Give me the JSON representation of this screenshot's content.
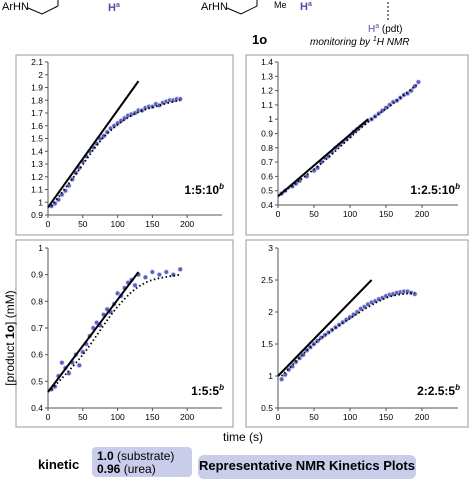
{
  "scheme": {
    "left_group": "ArHN",
    "h_label_left": "H",
    "h_sup_left": "a",
    "right_group": "ArHN",
    "me_label": "Me",
    "h_label_right": "H",
    "h_sup_right": "a",
    "compound": "1o",
    "pdt_h": "H",
    "pdt_sup": "a",
    "pdt_text": " (pdt)",
    "monitoring_prefix": "monitoring by ",
    "monitoring_sup": "1",
    "monitoring_suffix": "H NMR"
  },
  "axes": {
    "x_title": "time (s)",
    "y_title_prefix": "[product ",
    "y_title_bold": "1o",
    "y_title_suffix": "] (mM)"
  },
  "footer": {
    "kinetic_label": "kinetic",
    "order_1_value": "1.0",
    "order_1_text": " (substrate)",
    "order_2_value": "0.96",
    "order_2_text": " (urea)",
    "banner": "Representative NMR Kinetics Plots"
  },
  "chart_data": [
    {
      "type": "scatter",
      "ratio": "1:5:10",
      "ratio_sup": "b",
      "xlim": [
        0,
        250
      ],
      "ylim": [
        0.9,
        2.1
      ],
      "yticks": [
        "0.9",
        "1",
        "1.1",
        "1.2",
        "1.3",
        "1.4",
        "1.5",
        "1.6",
        "1.7",
        "1.8",
        "1.9",
        "2",
        "2.1"
      ],
      "xticks": [
        "0",
        "50",
        "100",
        "150",
        "200"
      ],
      "points": [
        [
          5,
          0.97
        ],
        [
          10,
          0.99
        ],
        [
          15,
          1.02
        ],
        [
          20,
          1.06
        ],
        [
          25,
          1.09
        ],
        [
          30,
          1.13
        ],
        [
          35,
          1.18
        ],
        [
          40,
          1.23
        ],
        [
          45,
          1.27
        ],
        [
          50,
          1.32
        ],
        [
          55,
          1.36
        ],
        [
          60,
          1.4
        ],
        [
          65,
          1.43
        ],
        [
          70,
          1.46
        ],
        [
          75,
          1.5
        ],
        [
          80,
          1.52
        ],
        [
          85,
          1.55
        ],
        [
          90,
          1.58
        ],
        [
          95,
          1.6
        ],
        [
          100,
          1.62
        ],
        [
          105,
          1.64
        ],
        [
          110,
          1.66
        ],
        [
          115,
          1.68
        ],
        [
          120,
          1.69
        ],
        [
          125,
          1.7
        ],
        [
          130,
          1.72
        ],
        [
          135,
          1.72
        ],
        [
          140,
          1.74
        ],
        [
          145,
          1.75
        ],
        [
          150,
          1.75
        ],
        [
          155,
          1.77
        ],
        [
          160,
          1.76
        ],
        [
          165,
          1.78
        ],
        [
          170,
          1.79
        ],
        [
          175,
          1.8
        ],
        [
          180,
          1.8
        ],
        [
          185,
          1.81
        ],
        [
          190,
          1.81
        ]
      ],
      "fit_line": [
        [
          0,
          0.96
        ],
        [
          130,
          1.95
        ]
      ],
      "trend": [
        [
          5,
          0.97
        ],
        [
          40,
          1.22
        ],
        [
          80,
          1.51
        ],
        [
          120,
          1.68
        ],
        [
          160,
          1.76
        ],
        [
          190,
          1.8
        ]
      ]
    },
    {
      "type": "scatter",
      "ratio": "1:2.5:10",
      "ratio_sup": "b",
      "xlim": [
        0,
        250
      ],
      "ylim": [
        0.4,
        1.4
      ],
      "yticks": [
        "0.4",
        "0.5",
        "0.6",
        "0.7",
        "0.8",
        "0.9",
        "1",
        "1.1",
        "1.2",
        "1.3",
        "1.4"
      ],
      "xticks": [
        "0",
        "50",
        "100",
        "150",
        "200"
      ],
      "points": [
        [
          5,
          0.48
        ],
        [
          10,
          0.5
        ],
        [
          20,
          0.53
        ],
        [
          25,
          0.55
        ],
        [
          30,
          0.57
        ],
        [
          40,
          0.6
        ],
        [
          50,
          0.64
        ],
        [
          55,
          0.66
        ],
        [
          60,
          0.7
        ],
        [
          65,
          0.73
        ],
        [
          70,
          0.74
        ],
        [
          75,
          0.77
        ],
        [
          80,
          0.8
        ],
        [
          85,
          0.82
        ],
        [
          90,
          0.84
        ],
        [
          95,
          0.86
        ],
        [
          100,
          0.88
        ],
        [
          105,
          0.91
        ],
        [
          110,
          0.93
        ],
        [
          115,
          0.95
        ],
        [
          120,
          0.97
        ],
        [
          125,
          0.99
        ],
        [
          130,
          1.0
        ],
        [
          135,
          1.02
        ],
        [
          140,
          1.04
        ],
        [
          145,
          1.06
        ],
        [
          150,
          1.08
        ],
        [
          155,
          1.1
        ],
        [
          160,
          1.12
        ],
        [
          165,
          1.13
        ],
        [
          170,
          1.15
        ],
        [
          175,
          1.17
        ],
        [
          180,
          1.18
        ],
        [
          185,
          1.2
        ],
        [
          190,
          1.23
        ],
        [
          195,
          1.26
        ]
      ],
      "fit_line": [
        [
          0,
          0.46
        ],
        [
          125,
          1.0
        ]
      ],
      "trend": [
        [
          5,
          0.48
        ],
        [
          60,
          0.69
        ],
        [
          120,
          0.96
        ],
        [
          160,
          1.11
        ],
        [
          195,
          1.25
        ]
      ]
    },
    {
      "type": "scatter",
      "ratio": "1:5:5",
      "ratio_sup": "b",
      "xlim": [
        0,
        250
      ],
      "ylim": [
        0.4,
        1.0
      ],
      "yticks": [
        "0.4",
        "0.5",
        "0.6",
        "0.7",
        "0.8",
        "0.9",
        "1"
      ],
      "xticks": [
        "0",
        "50",
        "100",
        "150",
        "200"
      ],
      "points": [
        [
          5,
          0.47
        ],
        [
          10,
          0.48
        ],
        [
          15,
          0.52
        ],
        [
          20,
          0.57
        ],
        [
          25,
          0.55
        ],
        [
          30,
          0.53
        ],
        [
          35,
          0.57
        ],
        [
          40,
          0.6
        ],
        [
          45,
          0.56
        ],
        [
          50,
          0.61
        ],
        [
          55,
          0.64
        ],
        [
          60,
          0.67
        ],
        [
          65,
          0.7
        ],
        [
          70,
          0.72
        ],
        [
          75,
          0.71
        ],
        [
          80,
          0.75
        ],
        [
          85,
          0.77
        ],
        [
          90,
          0.76
        ],
        [
          95,
          0.79
        ],
        [
          100,
          0.83
        ],
        [
          105,
          0.82
        ],
        [
          110,
          0.85
        ],
        [
          115,
          0.87
        ],
        [
          120,
          0.88
        ],
        [
          125,
          0.86
        ],
        [
          130,
          0.9
        ],
        [
          140,
          0.89
        ],
        [
          150,
          0.91
        ],
        [
          160,
          0.9
        ],
        [
          170,
          0.91
        ],
        [
          180,
          0.9
        ],
        [
          190,
          0.92
        ]
      ],
      "fit_line": [
        [
          0,
          0.46
        ],
        [
          130,
          0.91
        ]
      ],
      "trend": [
        [
          5,
          0.47
        ],
        [
          50,
          0.6
        ],
        [
          100,
          0.78
        ],
        [
          140,
          0.87
        ],
        [
          190,
          0.9
        ]
      ]
    },
    {
      "type": "scatter",
      "ratio": "2:2.5:5",
      "ratio_sup": "b",
      "xlim": [
        0,
        250
      ],
      "ylim": [
        0.5,
        3.0
      ],
      "yticks": [
        "0.5",
        "1",
        "1.5",
        "2",
        "2.5",
        "3"
      ],
      "xticks": [
        "0",
        "50",
        "100",
        "150",
        "200"
      ],
      "points": [
        [
          5,
          0.95
        ],
        [
          10,
          1.02
        ],
        [
          15,
          1.1
        ],
        [
          20,
          1.15
        ],
        [
          25,
          1.22
        ],
        [
          30,
          1.28
        ],
        [
          35,
          1.33
        ],
        [
          40,
          1.4
        ],
        [
          45,
          1.45
        ],
        [
          50,
          1.5
        ],
        [
          55,
          1.55
        ],
        [
          60,
          1.6
        ],
        [
          65,
          1.64
        ],
        [
          70,
          1.68
        ],
        [
          75,
          1.72
        ],
        [
          80,
          1.76
        ],
        [
          85,
          1.8
        ],
        [
          90,
          1.84
        ],
        [
          95,
          1.88
        ],
        [
          100,
          1.92
        ],
        [
          105,
          1.96
        ],
        [
          110,
          2.0
        ],
        [
          115,
          2.05
        ],
        [
          120,
          2.08
        ],
        [
          125,
          2.12
        ],
        [
          130,
          2.15
        ],
        [
          135,
          2.17
        ],
        [
          140,
          2.2
        ],
        [
          145,
          2.22
        ],
        [
          150,
          2.25
        ],
        [
          155,
          2.27
        ],
        [
          160,
          2.28
        ],
        [
          165,
          2.3
        ],
        [
          170,
          2.31
        ],
        [
          175,
          2.32
        ],
        [
          180,
          2.32
        ],
        [
          185,
          2.3
        ],
        [
          190,
          2.28
        ]
      ],
      "fit_line": [
        [
          0,
          1.0
        ],
        [
          130,
          2.5
        ]
      ],
      "trend": [
        [
          5,
          1.0
        ],
        [
          50,
          1.5
        ],
        [
          100,
          1.9
        ],
        [
          150,
          2.22
        ],
        [
          190,
          2.3
        ]
      ]
    }
  ]
}
